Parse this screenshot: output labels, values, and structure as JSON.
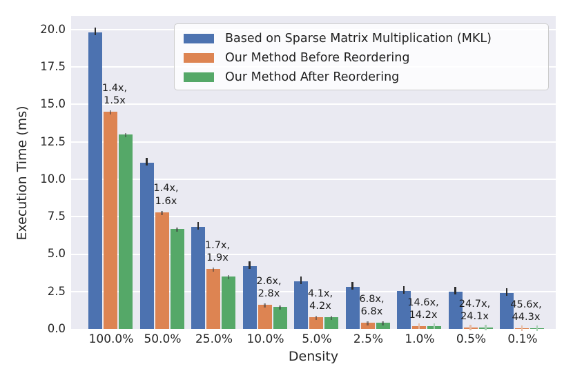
{
  "axes": {
    "ylabel": "Execution Time (ms)",
    "xlabel": "Density",
    "background_color": "#eaeaf2",
    "grid_color": "#ffffff",
    "text_color": "#262626",
    "ytick_labels": [
      "0.0",
      "2.5",
      "5.0",
      "7.5",
      "10.0",
      "12.5",
      "15.0",
      "17.5",
      "20.0"
    ],
    "ytick_values": [
      0,
      2.5,
      5,
      7.5,
      10,
      12.5,
      15,
      17.5,
      20
    ]
  },
  "legend": {
    "position": "upper right",
    "border_color": "#cccccc"
  },
  "chart_data": {
    "type": "bar",
    "title": "",
    "xlabel": "Density",
    "ylabel": "Execution Time (ms)",
    "categories": [
      "100.0%",
      "50.0%",
      "25.0%",
      "10.0%",
      "5.0%",
      "2.5%",
      "1.0%",
      "0.5%",
      "0.1%"
    ],
    "series": [
      {
        "name": "Based on Sparse Matrix Multiplication (MKL)",
        "color": "#4c72b0",
        "values": [
          19.8,
          11.1,
          6.8,
          4.2,
          3.2,
          2.8,
          2.55,
          2.5,
          2.4
        ]
      },
      {
        "name": "Our Method Before Reordering",
        "color": "#dd8452",
        "values": [
          14.5,
          7.8,
          4.0,
          1.6,
          0.78,
          0.41,
          0.175,
          0.101,
          0.053
        ]
      },
      {
        "name": "Our Method After Reordering",
        "color": "#55a868",
        "values": [
          13.0,
          6.7,
          3.5,
          1.49,
          0.77,
          0.41,
          0.18,
          0.104,
          0.054
        ]
      }
    ],
    "annotations": [
      "1.4x,\n1.5x",
      "1.4x,\n1.6x",
      "1.7x,\n1.9x",
      "2.6x,\n2.8x",
      "4.1x,\n4.2x",
      "6.8x,\n6.8x",
      "14.6x,\n14.2x",
      "24.7x,\n24.1x",
      "45.6x,\n44.3x"
    ],
    "ylim": [
      0,
      20.92
    ],
    "grid": true,
    "legend_position": "upper right"
  }
}
